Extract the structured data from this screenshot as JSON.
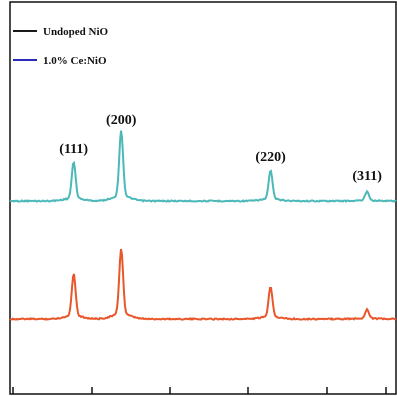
{
  "chart_data": {
    "type": "line",
    "title": "",
    "xlabel": "",
    "ylabel": "",
    "legend": {
      "placement": "top-left",
      "entries": [
        {
          "name": "Undoped NiO",
          "color": "#1a1a1a"
        },
        {
          "name": "1.0% Ce:NiO",
          "color": "#2b2bb8"
        }
      ]
    },
    "x_range": [
      0,
      100
    ],
    "series": [
      {
        "color": "#4db8b8",
        "peaks": [
          {
            "x": 16.5,
            "height": 36
          },
          {
            "x": 28.8,
            "height": 65
          },
          {
            "x": 67.5,
            "height": 28
          },
          {
            "x": 92.5,
            "height": 9
          }
        ]
      },
      {
        "color": "#e8562a",
        "peaks": [
          {
            "x": 16.5,
            "height": 42
          },
          {
            "x": 28.8,
            "height": 65
          },
          {
            "x": 67.5,
            "height": 30
          },
          {
            "x": 92.5,
            "height": 9
          }
        ]
      }
    ],
    "annotations": [
      {
        "text": "(111)",
        "x": 16.5
      },
      {
        "text": "(200)",
        "x": 28.8
      },
      {
        "text": "(220)",
        "x": 67.5
      },
      {
        "text": "(311)",
        "x": 92.5
      }
    ],
    "grid": false
  }
}
